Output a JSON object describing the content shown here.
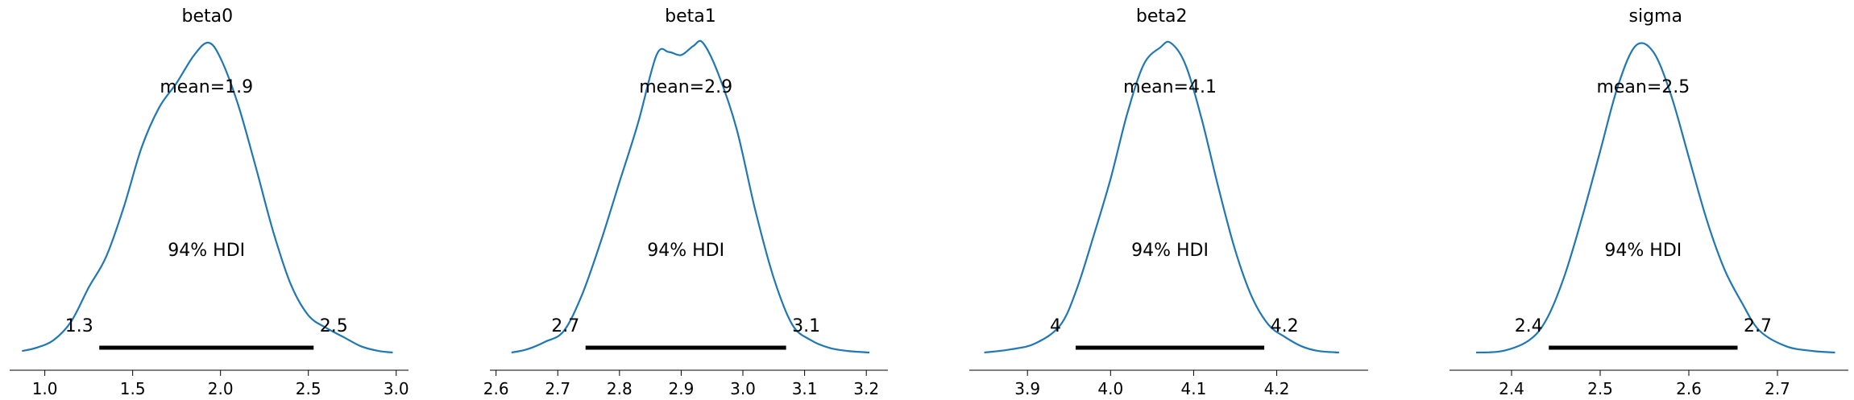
{
  "chart_data": [
    {
      "type": "line",
      "title": "beta0",
      "mean_label": "mean=1.9",
      "hdi_label": "94% HDI",
      "hdi_low_label": "1.3",
      "hdi_high_label": "2.5",
      "hdi": [
        1.31,
        2.53
      ],
      "xlim": [
        0.8,
        3.07
      ],
      "xticks": [
        1.0,
        1.5,
        2.0,
        2.5,
        3.0
      ],
      "xtick_labels": [
        "1.0",
        "1.5",
        "2.0",
        "2.5",
        "3.0"
      ],
      "density": {
        "x": [
          0.87,
          0.95,
          1.05,
          1.15,
          1.25,
          1.35,
          1.45,
          1.55,
          1.65,
          1.75,
          1.85,
          1.93,
          2.0,
          2.1,
          2.2,
          2.3,
          2.4,
          2.5,
          2.6,
          2.7,
          2.8,
          2.9,
          2.98
        ],
        "y": [
          0.005,
          0.015,
          0.04,
          0.1,
          0.21,
          0.31,
          0.47,
          0.66,
          0.79,
          0.87,
          0.96,
          1.0,
          0.95,
          0.8,
          0.6,
          0.39,
          0.22,
          0.12,
          0.08,
          0.05,
          0.02,
          0.005,
          0.0
        ]
      }
    },
    {
      "type": "line",
      "title": "beta1",
      "mean_label": "mean=2.9",
      "hdi_label": "94% HDI",
      "hdi_low_label": "2.7",
      "hdi_high_label": "3.1",
      "hdi": [
        2.745,
        3.07
      ],
      "xlim": [
        2.59,
        3.235
      ],
      "xticks": [
        2.6,
        2.7,
        2.8,
        2.9,
        3.0,
        3.1,
        3.2
      ],
      "xtick_labels": [
        "2.6",
        "2.7",
        "2.8",
        "2.9",
        "3.0",
        "3.1",
        "3.2"
      ],
      "density": {
        "x": [
          2.625,
          2.65,
          2.68,
          2.71,
          2.74,
          2.77,
          2.8,
          2.83,
          2.86,
          2.88,
          2.9,
          2.92,
          2.935,
          2.96,
          2.99,
          3.02,
          3.05,
          3.08,
          3.11,
          3.14,
          3.17,
          3.205
        ],
        "y": [
          0.0,
          0.01,
          0.035,
          0.07,
          0.19,
          0.36,
          0.55,
          0.74,
          0.96,
          0.97,
          0.96,
          0.99,
          1.0,
          0.9,
          0.72,
          0.46,
          0.24,
          0.09,
          0.04,
          0.015,
          0.005,
          0.0
        ]
      }
    },
    {
      "type": "line",
      "title": "beta2",
      "mean_label": "mean=4.1",
      "hdi_label": "94% HDI",
      "hdi_low_label": "4",
      "hdi_high_label": "4.2",
      "hdi": [
        3.958,
        4.185
      ],
      "xlim": [
        3.83,
        4.31
      ],
      "xticks": [
        3.9,
        4.0,
        4.1,
        4.2
      ],
      "xtick_labels": [
        "3.9",
        "4.0",
        "4.1",
        "4.2"
      ],
      "density": {
        "x": [
          3.848,
          3.88,
          3.91,
          3.94,
          3.96,
          3.98,
          4.0,
          4.02,
          4.04,
          4.06,
          4.072,
          4.09,
          4.11,
          4.13,
          4.15,
          4.17,
          4.19,
          4.21,
          4.23,
          4.25,
          4.275
        ],
        "y": [
          0.0,
          0.01,
          0.03,
          0.09,
          0.21,
          0.38,
          0.56,
          0.77,
          0.93,
          0.985,
          1.0,
          0.93,
          0.75,
          0.53,
          0.33,
          0.18,
          0.09,
          0.05,
          0.02,
          0.005,
          0.0
        ]
      }
    },
    {
      "type": "line",
      "title": "sigma",
      "mean_label": "mean=2.5",
      "hdi_label": "94% HDI",
      "hdi_low_label": "2.4",
      "hdi_high_label": "2.7",
      "hdi": [
        2.442,
        2.655
      ],
      "xlim": [
        2.33,
        2.78
      ],
      "xticks": [
        2.4,
        2.5,
        2.6,
        2.7
      ],
      "xtick_labels": [
        "2.4",
        "2.5",
        "2.6",
        "2.7"
      ],
      "density": {
        "x": [
          2.36,
          2.39,
          2.42,
          2.44,
          2.46,
          2.48,
          2.5,
          2.52,
          2.54,
          2.56,
          2.58,
          2.6,
          2.62,
          2.64,
          2.66,
          2.68,
          2.71,
          2.74,
          2.765
        ],
        "y": [
          0.0,
          0.005,
          0.04,
          0.11,
          0.25,
          0.44,
          0.65,
          0.86,
          0.99,
          0.97,
          0.83,
          0.63,
          0.43,
          0.27,
          0.16,
          0.07,
          0.02,
          0.005,
          0.0
        ]
      }
    }
  ]
}
